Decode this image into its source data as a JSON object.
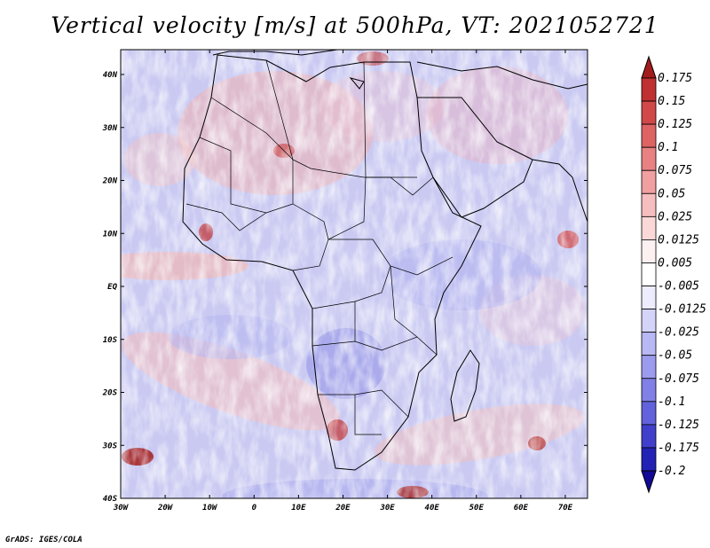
{
  "title": "Vertical velocity [m/s] at 500hPa, VT: 2021052721",
  "credit": "GrADS: IGES/COLA",
  "map": {
    "lon_range": [
      -30,
      75
    ],
    "lat_range": [
      -40,
      45
    ],
    "lon_ticks": [
      "30W",
      "20W",
      "10W",
      "0",
      "10E",
      "20E",
      "30E",
      "40E",
      "50E",
      "60E",
      "70E"
    ],
    "lat_ticks": [
      "40N",
      "30N",
      "20N",
      "10N",
      "EQ",
      "10S",
      "20S",
      "30S",
      "40S"
    ]
  },
  "colorbar": {
    "labels": [
      "0.175",
      "0.15",
      "0.125",
      "0.1",
      "0.075",
      "0.05",
      "0.025",
      "0.0125",
      "0.005",
      "-0.005",
      "-0.0125",
      "-0.025",
      "-0.05",
      "-0.075",
      "-0.1",
      "-0.125",
      "-0.175",
      "-0.2"
    ],
    "colors": [
      "#a31c1c",
      "#c03030",
      "#d04848",
      "#de6464",
      "#e88282",
      "#f0a0a0",
      "#f6bebe",
      "#fad8d8",
      "#fdf0f0",
      "#ffffff",
      "#ececfd",
      "#d4d4fa",
      "#b8b8f4",
      "#9c9cee",
      "#8080e6",
      "#6262dc",
      "#4040cc",
      "#2222b4",
      "#120a96"
    ]
  }
}
